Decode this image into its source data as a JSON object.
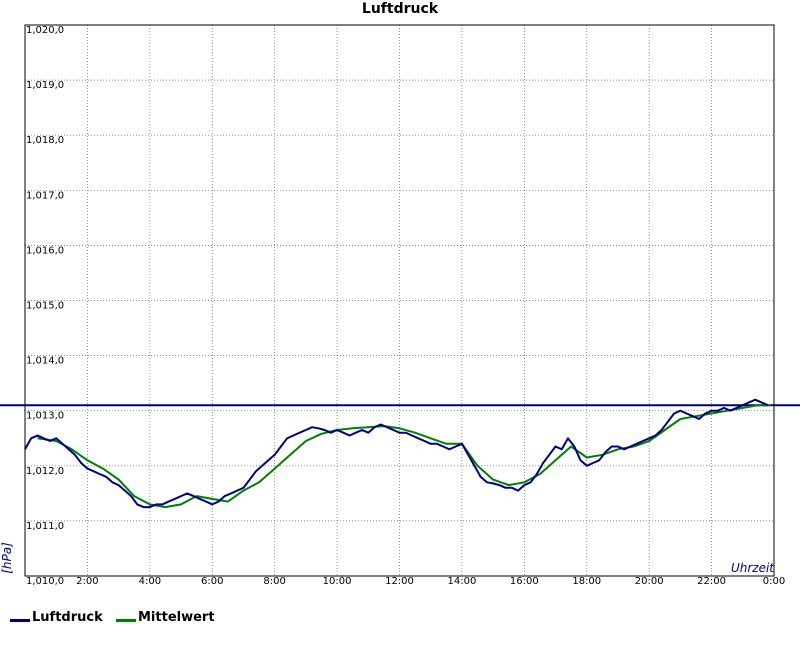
{
  "chart_data": {
    "type": "line",
    "title": "Luftdruck",
    "ylabel": "[hPa]",
    "xlabel": "Uhrzeit",
    "ylim": [
      1010.0,
      1020.0
    ],
    "xlim": [
      0,
      24
    ],
    "grid": true,
    "y_ticks": [
      {
        "value": 1010.0,
        "label": "1,010,0"
      },
      {
        "value": 1011.0,
        "label": "1,011,0"
      },
      {
        "value": 1012.0,
        "label": "1,012,0"
      },
      {
        "value": 1013.0,
        "label": "1,013,0"
      },
      {
        "value": 1014.0,
        "label": "1,014,0"
      },
      {
        "value": 1015.0,
        "label": "1,015,0"
      },
      {
        "value": 1016.0,
        "label": "1,016,0"
      },
      {
        "value": 1017.0,
        "label": "1,017,0"
      },
      {
        "value": 1018.0,
        "label": "1,018,0"
      },
      {
        "value": 1019.0,
        "label": "1,019,0"
      },
      {
        "value": 1020.0,
        "label": "1,020,0"
      }
    ],
    "x_ticks": [
      {
        "value": 2,
        "label": "2:00"
      },
      {
        "value": 4,
        "label": "4:00"
      },
      {
        "value": 6,
        "label": "6:00"
      },
      {
        "value": 8,
        "label": "8:00"
      },
      {
        "value": 10,
        "label": "10:00"
      },
      {
        "value": 12,
        "label": "12:00"
      },
      {
        "value": 14,
        "label": "14:00"
      },
      {
        "value": 16,
        "label": "16:00"
      },
      {
        "value": 18,
        "label": "18:00"
      },
      {
        "value": 20,
        "label": "20:00"
      },
      {
        "value": 22,
        "label": "22:00"
      },
      {
        "value": 24,
        "label": "0:00"
      }
    ],
    "reference_line": {
      "value": 1013.1,
      "color": "#000080"
    },
    "legend_position": "bottom-left",
    "series": [
      {
        "name": "Luftdruck",
        "color": "#000080",
        "x": [
          0,
          0.2,
          0.4,
          0.6,
          0.8,
          1.0,
          1.2,
          1.4,
          1.6,
          1.8,
          2.0,
          2.2,
          2.4,
          2.6,
          2.8,
          3.0,
          3.2,
          3.4,
          3.6,
          3.8,
          4.0,
          4.2,
          4.4,
          4.6,
          4.8,
          5.0,
          5.2,
          5.4,
          5.6,
          5.8,
          6.0,
          6.2,
          6.4,
          6.6,
          6.8,
          7.0,
          7.2,
          7.4,
          7.6,
          7.8,
          8.0,
          8.2,
          8.4,
          8.6,
          8.8,
          9.0,
          9.2,
          9.4,
          9.6,
          9.8,
          10.0,
          10.2,
          10.4,
          10.6,
          10.8,
          11.0,
          11.2,
          11.4,
          11.6,
          11.8,
          12.0,
          12.2,
          12.4,
          12.6,
          12.8,
          13.0,
          13.2,
          13.4,
          13.6,
          13.8,
          14.0,
          14.2,
          14.4,
          14.6,
          14.8,
          15.0,
          15.2,
          15.4,
          15.6,
          15.8,
          16.0,
          16.2,
          16.4,
          16.6,
          16.8,
          17.0,
          17.2,
          17.4,
          17.6,
          17.8,
          18.0,
          18.2,
          18.4,
          18.6,
          18.8,
          19.0,
          19.2,
          19.4,
          19.6,
          19.8,
          20.0,
          20.2,
          20.4,
          20.6,
          20.8,
          21.0,
          21.2,
          21.4,
          21.6,
          21.8,
          22.0,
          22.2,
          22.4,
          22.6,
          22.8,
          23.0,
          23.2,
          23.4,
          23.6,
          23.8
        ],
        "values": [
          1012.3,
          1012.5,
          1012.55,
          1012.5,
          1012.45,
          1012.5,
          1012.4,
          1012.3,
          1012.2,
          1012.05,
          1011.95,
          1011.9,
          1011.85,
          1011.8,
          1011.7,
          1011.65,
          1011.55,
          1011.45,
          1011.3,
          1011.25,
          1011.25,
          1011.3,
          1011.3,
          1011.35,
          1011.4,
          1011.45,
          1011.5,
          1011.45,
          1011.4,
          1011.35,
          1011.3,
          1011.35,
          1011.45,
          1011.5,
          1011.55,
          1011.6,
          1011.75,
          1011.9,
          1012.0,
          1012.1,
          1012.2,
          1012.35,
          1012.5,
          1012.55,
          1012.6,
          1012.65,
          1012.7,
          1012.68,
          1012.65,
          1012.6,
          1012.65,
          1012.6,
          1012.55,
          1012.6,
          1012.65,
          1012.6,
          1012.7,
          1012.75,
          1012.7,
          1012.65,
          1012.6,
          1012.6,
          1012.55,
          1012.5,
          1012.45,
          1012.4,
          1012.4,
          1012.35,
          1012.3,
          1012.35,
          1012.4,
          1012.2,
          1012.0,
          1011.8,
          1011.7,
          1011.68,
          1011.65,
          1011.6,
          1011.6,
          1011.55,
          1011.65,
          1011.7,
          1011.85,
          1012.05,
          1012.2,
          1012.35,
          1012.3,
          1012.5,
          1012.35,
          1012.1,
          1012.0,
          1012.05,
          1012.1,
          1012.25,
          1012.35,
          1012.35,
          1012.3,
          1012.35,
          1012.4,
          1012.45,
          1012.5,
          1012.55,
          1012.65,
          1012.8,
          1012.95,
          1013.0,
          1012.95,
          1012.9,
          1012.85,
          1012.95,
          1013.0,
          1013.0,
          1013.05,
          1013.0,
          1013.05,
          1013.1,
          1013.15,
          1013.2,
          1013.15,
          1013.1
        ]
      },
      {
        "name": "Mittelwert",
        "color": "#008000",
        "x": [
          0.4,
          1.0,
          1.5,
          2.0,
          2.5,
          3.0,
          3.5,
          4.0,
          4.5,
          5.0,
          5.5,
          6.0,
          6.5,
          7.0,
          7.5,
          8.0,
          8.5,
          9.0,
          9.5,
          10.0,
          10.5,
          11.0,
          11.5,
          12.0,
          12.5,
          13.0,
          13.5,
          14.0,
          14.5,
          15.0,
          15.5,
          16.0,
          16.5,
          17.0,
          17.5,
          18.0,
          18.5,
          19.0,
          19.5,
          20.0,
          20.5,
          21.0,
          21.5,
          22.0,
          22.5,
          23.0,
          23.5,
          23.9
        ],
        "values": [
          1012.5,
          1012.45,
          1012.3,
          1012.1,
          1011.95,
          1011.75,
          1011.45,
          1011.3,
          1011.25,
          1011.3,
          1011.45,
          1011.4,
          1011.35,
          1011.55,
          1011.7,
          1011.95,
          1012.2,
          1012.45,
          1012.58,
          1012.65,
          1012.68,
          1012.7,
          1012.72,
          1012.68,
          1012.6,
          1012.5,
          1012.4,
          1012.4,
          1012.0,
          1011.75,
          1011.65,
          1011.7,
          1011.85,
          1012.1,
          1012.35,
          1012.15,
          1012.2,
          1012.3,
          1012.35,
          1012.45,
          1012.65,
          1012.85,
          1012.9,
          1012.95,
          1013.0,
          1013.05,
          1013.1,
          1013.1
        ]
      }
    ]
  }
}
